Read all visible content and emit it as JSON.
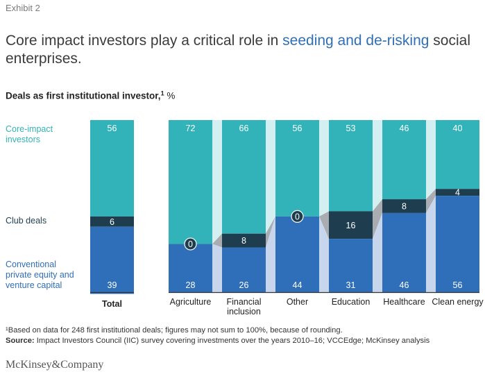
{
  "exhibit": "Exhibit 2",
  "headline": {
    "part1": "Core impact investors play a critical role in ",
    "highlight": "seeding and de-risking",
    "part2": " social enterprises."
  },
  "subtitle": {
    "text": "Deals as first institutional investor,",
    "sup": "1",
    "unit": "%"
  },
  "footnote": "¹Based on data for 248 first institutional deals; figures may not sum to 100%, because of rounding.",
  "source": {
    "label": "Source:",
    "text": " Impact Investors Council (IIC) survey covering investments over the years 2010–16; VCCEdge; McKinsey analysis"
  },
  "logo": "McKinsey&Company",
  "colors": {
    "core": "#32b3b9",
    "club": "#1e3e50",
    "conventional": "#2f6eb8",
    "core_band": "#d3eff1",
    "club_band": "#a9acb1",
    "conventional_band": "#c7d6ec",
    "zero_circle": "#1e3e50",
    "value_text": "#ffffff"
  },
  "chart_data": {
    "type": "bar",
    "stacked": true,
    "segment_labels": [
      "Core-impact investors",
      "Club deals",
      "Conventional private equity and venture capital"
    ],
    "total": {
      "category": "Total",
      "values": {
        "core": 56,
        "club": 6,
        "conventional": 39
      }
    },
    "categories": [
      "Agriculture",
      "Financial inclusion",
      "Other",
      "Education",
      "Healthcare",
      "Clean energy"
    ],
    "series": [
      {
        "name": "Core-impact investors",
        "key": "core",
        "values": [
          72,
          66,
          56,
          53,
          46,
          40
        ]
      },
      {
        "name": "Club deals",
        "key": "club",
        "values": [
          0,
          8,
          0,
          16,
          8,
          4
        ]
      },
      {
        "name": "Conventional private equity and venture capital",
        "key": "conventional",
        "values": [
          28,
          26,
          44,
          31,
          46,
          56
        ]
      }
    ],
    "ylim": [
      0,
      100
    ]
  }
}
